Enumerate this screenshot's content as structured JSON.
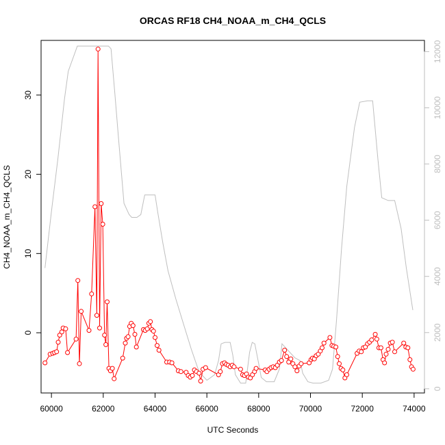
{
  "chart_data": {
    "type": "line",
    "title": "ORCAS RF18 CH4_NOAA_m_CH4_QCLS",
    "xlabel": "UTC Seconds",
    "ylabel": "CH4_NOAA_m_CH4_QCLS",
    "xlim": [
      59600,
      74400
    ],
    "ylim": [
      -7.6,
      36.9
    ],
    "y2lim": [
      -150,
      12400
    ],
    "x_ticks": [
      60000,
      62000,
      64000,
      66000,
      68000,
      70000,
      72000,
      74000
    ],
    "y_ticks": [
      0,
      10,
      20,
      30
    ],
    "y2_ticks": [
      0,
      2000,
      4000,
      6000,
      8000,
      10000,
      12000
    ],
    "grid": false,
    "series": [
      {
        "role": "primary",
        "color": "#ff0000",
        "style": "line-points",
        "points": [
          [
            59750,
            -3.8
          ],
          [
            59950,
            -2.7
          ],
          [
            60050,
            -2.6
          ],
          [
            60120,
            -2.5
          ],
          [
            60200,
            -2.4
          ],
          [
            60260,
            -1.2
          ],
          [
            60320,
            -0.3
          ],
          [
            60400,
            0.1
          ],
          [
            60450,
            0.6
          ],
          [
            60550,
            0.5
          ],
          [
            60620,
            -2.5
          ],
          [
            60950,
            -0.8
          ],
          [
            61020,
            6.6
          ],
          [
            61080,
            -3.9
          ],
          [
            61150,
            2.7
          ],
          [
            61450,
            0.3
          ],
          [
            61550,
            4.9
          ],
          [
            61680,
            15.9
          ],
          [
            61750,
            2.2
          ],
          [
            61800,
            35.8
          ],
          [
            61860,
            0.6
          ],
          [
            61920,
            16.3
          ],
          [
            61980,
            13.7
          ],
          [
            62050,
            -0.3
          ],
          [
            62100,
            -1.5
          ],
          [
            62150,
            3.9
          ],
          [
            62220,
            -4.5
          ],
          [
            62280,
            -4.8
          ],
          [
            62350,
            -4.5
          ],
          [
            62420,
            -5.8
          ],
          [
            62750,
            -3.2
          ],
          [
            62850,
            -1.3
          ],
          [
            62900,
            -0.7
          ],
          [
            62960,
            -0.5
          ],
          [
            63020,
            0.8
          ],
          [
            63080,
            1.2
          ],
          [
            63150,
            0.9
          ],
          [
            63220,
            -0.2
          ],
          [
            63280,
            -1.8
          ],
          [
            63550,
            0.4
          ],
          [
            63620,
            0.3
          ],
          [
            63700,
            0.5
          ],
          [
            63760,
            1.2
          ],
          [
            63820,
            1.4
          ],
          [
            63880,
            0.4
          ],
          [
            63940,
            0.2
          ],
          [
            64000,
            -0.6
          ],
          [
            64080,
            -1.6
          ],
          [
            64150,
            -2.2
          ],
          [
            64450,
            -3.7
          ],
          [
            64560,
            -3.7
          ],
          [
            64650,
            -3.8
          ],
          [
            64900,
            -4.8
          ],
          [
            65000,
            -4.9
          ],
          [
            65200,
            -5.0
          ],
          [
            65280,
            -5.4
          ],
          [
            65360,
            -5.6
          ],
          [
            65440,
            -5.4
          ],
          [
            65520,
            -4.7
          ],
          [
            65600,
            -4.9
          ],
          [
            65700,
            -5.1
          ],
          [
            65760,
            -6.1
          ],
          [
            65850,
            -4.6
          ],
          [
            65950,
            -4.4
          ],
          [
            66450,
            -5.3
          ],
          [
            66520,
            -4.9
          ],
          [
            66600,
            -3.9
          ],
          [
            66680,
            -3.8
          ],
          [
            66750,
            -4.0
          ],
          [
            66820,
            -4.1
          ],
          [
            66900,
            -4.3
          ],
          [
            66980,
            -4.1
          ],
          [
            67050,
            -4.3
          ],
          [
            67300,
            -4.6
          ],
          [
            67380,
            -5.3
          ],
          [
            67450,
            -5.4
          ],
          [
            67530,
            -5.2
          ],
          [
            67600,
            -5.6
          ],
          [
            67680,
            -5.7
          ],
          [
            67760,
            -5.3
          ],
          [
            67840,
            -4.9
          ],
          [
            67900,
            -4.5
          ],
          [
            68250,
            -4.7
          ],
          [
            68320,
            -4.9
          ],
          [
            68400,
            -4.6
          ],
          [
            68480,
            -4.4
          ],
          [
            68560,
            -4.3
          ],
          [
            68640,
            -4.4
          ],
          [
            68720,
            -4.1
          ],
          [
            68800,
            -3.7
          ],
          [
            68880,
            -3.5
          ],
          [
            69000,
            -2.2
          ],
          [
            69080,
            -3.0
          ],
          [
            69160,
            -3.7
          ],
          [
            69240,
            -3.3
          ],
          [
            69320,
            -3.9
          ],
          [
            69400,
            -4.3
          ],
          [
            69480,
            -4.8
          ],
          [
            69560,
            -4.2
          ],
          [
            69640,
            -3.9
          ],
          [
            69950,
            -3.8
          ],
          [
            70020,
            -3.4
          ],
          [
            70080,
            -3.2
          ],
          [
            70150,
            -3.3
          ],
          [
            70220,
            -2.9
          ],
          [
            70300,
            -2.7
          ],
          [
            70380,
            -2.3
          ],
          [
            70450,
            -1.9
          ],
          [
            70520,
            -1.3
          ],
          [
            70750,
            -0.6
          ],
          [
            70830,
            -1.6
          ],
          [
            70900,
            -1.7
          ],
          [
            70980,
            -1.8
          ],
          [
            71050,
            -3.0
          ],
          [
            71110,
            -3.9
          ],
          [
            71180,
            -4.5
          ],
          [
            71250,
            -4.7
          ],
          [
            71330,
            -5.7
          ],
          [
            71400,
            -5.3
          ],
          [
            71800,
            -2.6
          ],
          [
            71880,
            -2.3
          ],
          [
            71960,
            -2.4
          ],
          [
            72040,
            -1.9
          ],
          [
            72120,
            -1.8
          ],
          [
            72200,
            -1.4
          ],
          [
            72280,
            -1.2
          ],
          [
            72360,
            -0.9
          ],
          [
            72500,
            -0.2
          ],
          [
            72560,
            -0.8
          ],
          [
            72640,
            -1.9
          ],
          [
            72720,
            -1.9
          ],
          [
            72800,
            -3.4
          ],
          [
            72860,
            -3.8
          ],
          [
            72920,
            -2.7
          ],
          [
            73000,
            -2.1
          ],
          [
            73080,
            -1.3
          ],
          [
            73160,
            -1.2
          ],
          [
            73250,
            -2.4
          ],
          [
            73600,
            -1.3
          ],
          [
            73680,
            -1.8
          ],
          [
            73760,
            -1.9
          ],
          [
            73840,
            -3.4
          ],
          [
            73900,
            -4.3
          ],
          [
            73960,
            -4.6
          ]
        ]
      },
      {
        "role": "secondary",
        "color": "#bebebe",
        "style": "line",
        "points": [
          [
            59750,
            4300
          ],
          [
            60000,
            6300
          ],
          [
            60250,
            8200
          ],
          [
            60500,
            10300
          ],
          [
            60650,
            11300
          ],
          [
            61000,
            12200
          ],
          [
            61500,
            12200
          ],
          [
            61900,
            12200
          ],
          [
            62200,
            12200
          ],
          [
            62300,
            12100
          ],
          [
            62450,
            10500
          ],
          [
            62600,
            8800
          ],
          [
            62800,
            6600
          ],
          [
            63000,
            6200
          ],
          [
            63100,
            6100
          ],
          [
            63200,
            6100
          ],
          [
            63300,
            6100
          ],
          [
            63450,
            6200
          ],
          [
            63600,
            6900
          ],
          [
            63800,
            6900
          ],
          [
            64000,
            6900
          ],
          [
            64100,
            6300
          ],
          [
            64300,
            5200
          ],
          [
            64500,
            4200
          ],
          [
            64800,
            3200
          ],
          [
            65100,
            2300
          ],
          [
            65400,
            1400
          ],
          [
            65700,
            600
          ],
          [
            66000,
            300
          ],
          [
            66300,
            500
          ],
          [
            66450,
            1000
          ],
          [
            66550,
            1600
          ],
          [
            66700,
            1650
          ],
          [
            66900,
            1650
          ],
          [
            67000,
            1200
          ],
          [
            67100,
            500
          ],
          [
            67300,
            200
          ],
          [
            67500,
            200
          ],
          [
            67650,
            1300
          ],
          [
            67750,
            1650
          ],
          [
            67850,
            1600
          ],
          [
            68000,
            900
          ],
          [
            68100,
            400
          ],
          [
            68300,
            250
          ],
          [
            68600,
            250
          ],
          [
            68800,
            700
          ],
          [
            68900,
            1600
          ],
          [
            69000,
            1500
          ],
          [
            69200,
            1300
          ],
          [
            69400,
            1100
          ],
          [
            69600,
            1000
          ],
          [
            69700,
            550
          ],
          [
            69900,
            250
          ],
          [
            70100,
            200
          ],
          [
            70400,
            200
          ],
          [
            70700,
            300
          ],
          [
            70850,
            700
          ],
          [
            71000,
            2400
          ],
          [
            71200,
            5000
          ],
          [
            71400,
            7200
          ],
          [
            71700,
            9300
          ],
          [
            71900,
            10200
          ],
          [
            72200,
            10250
          ],
          [
            72400,
            10250
          ],
          [
            72600,
            8200
          ],
          [
            72750,
            6800
          ],
          [
            73000,
            6700
          ],
          [
            73250,
            6700
          ],
          [
            73500,
            5700
          ],
          [
            73700,
            4300
          ],
          [
            73950,
            2800
          ]
        ]
      }
    ]
  }
}
